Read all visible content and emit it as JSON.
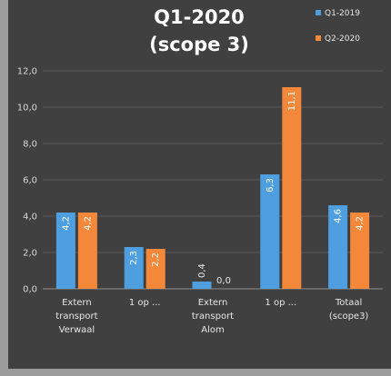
{
  "chart_data": {
    "type": "bar",
    "title_line1": "Q1-2020",
    "title_line2": "(scope 3)",
    "categories": [
      [
        "Extern",
        "transport",
        "Verwaal"
      ],
      [
        "1 op ..."
      ],
      [
        "Extern",
        "transport",
        "Alom"
      ],
      [
        "1 op ..."
      ],
      [
        "Totaal",
        "(scope3)"
      ]
    ],
    "series": [
      {
        "name": "Q1-2019",
        "color": "#4f9fe0",
        "values": [
          4.2,
          2.3,
          0.4,
          6.3,
          4.6
        ],
        "labels": [
          "4,2",
          "2,3",
          "0,4",
          "6,3",
          "4,6"
        ]
      },
      {
        "name": "Q2-2020",
        "color": "#f4883a",
        "values": [
          4.2,
          2.2,
          0.0,
          11.1,
          4.2
        ],
        "labels": [
          "4,2",
          "2,2",
          "0,0",
          "11,1",
          "4,2"
        ]
      }
    ],
    "yticks": [
      "0,0",
      "2,0",
      "4,0",
      "6,0",
      "8,0",
      "10,0",
      "12,0"
    ],
    "ylim": [
      0,
      12
    ],
    "grid": true,
    "legend_position": "top-right"
  }
}
